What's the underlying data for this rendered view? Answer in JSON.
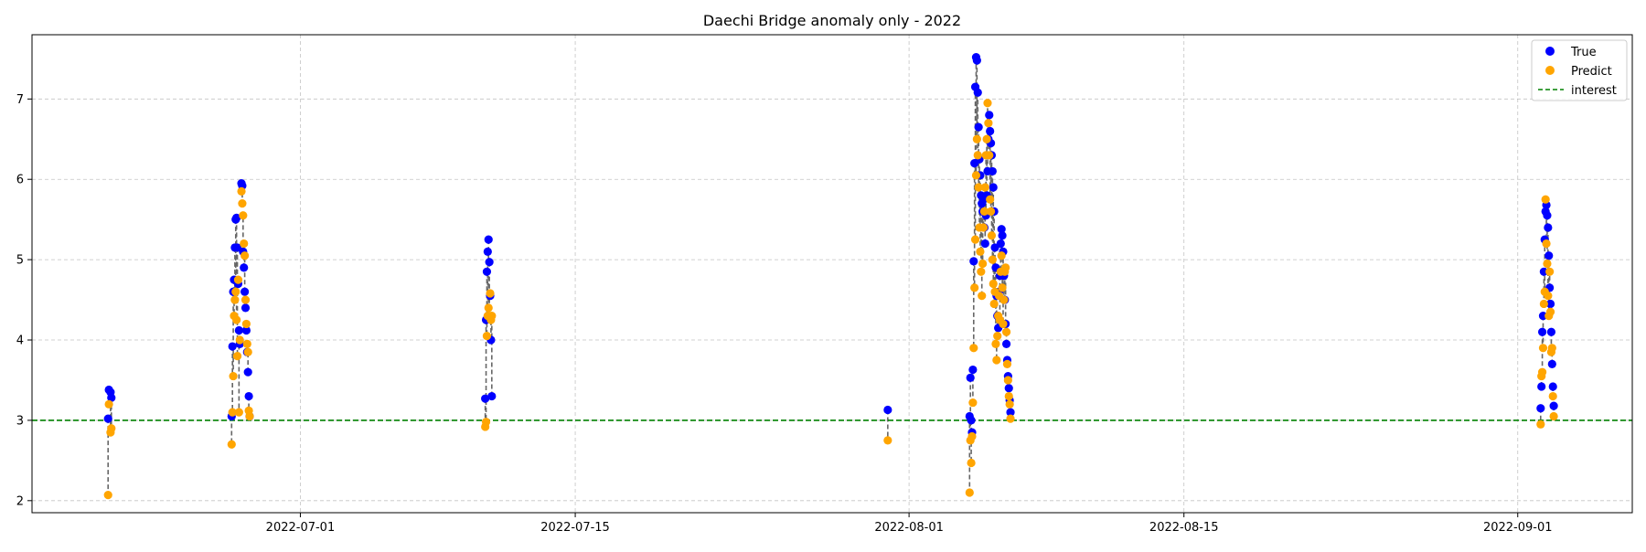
{
  "chart_data": {
    "type": "scatter",
    "title": "Daechi Bridge anomaly only - 2022",
    "xlabel": "",
    "ylabel": "",
    "x_axis_type": "date",
    "xlim": [
      "2022-06-17T08:00",
      "2022-09-06T20:00"
    ],
    "ylim": [
      1.85,
      7.8
    ],
    "x_ticks": [
      "2022-07-01",
      "2022-07-15",
      "2022-08-01",
      "2022-08-15",
      "2022-09-01"
    ],
    "y_ticks": [
      2,
      3,
      4,
      5,
      6,
      7
    ],
    "grid": true,
    "legend_position": "top-right",
    "colors": {
      "true": "#0000ff",
      "predict": "#ffa500",
      "interest": "#008000",
      "connector": "#666666",
      "grid": "#b0b0b0"
    },
    "interest": {
      "name": "interest",
      "y": 3.0
    },
    "series": [
      {
        "name": "True",
        "points": [
          [
            "2022-06-21T06:00",
            3.38
          ],
          [
            "2022-06-21T08:00",
            3.35
          ],
          [
            "2022-06-21T09:00",
            3.28
          ],
          [
            "2022-06-21T05:00",
            3.02
          ],
          [
            "2022-06-27T12:00",
            3.05
          ],
          [
            "2022-06-27T13:00",
            3.92
          ],
          [
            "2022-06-27T14:00",
            4.6
          ],
          [
            "2022-06-27T15:00",
            4.75
          ],
          [
            "2022-06-27T16:00",
            5.15
          ],
          [
            "2022-06-27T17:00",
            5.5
          ],
          [
            "2022-06-27T18:00",
            5.52
          ],
          [
            "2022-06-27T19:00",
            5.15
          ],
          [
            "2022-06-27T20:00",
            4.7
          ],
          [
            "2022-06-27T21:00",
            4.12
          ],
          [
            "2022-06-27T22:00",
            3.95
          ],
          [
            "2022-06-28T00:00",
            5.95
          ],
          [
            "2022-06-28T01:00",
            5.92
          ],
          [
            "2022-06-28T02:00",
            5.1
          ],
          [
            "2022-06-28T03:00",
            4.9
          ],
          [
            "2022-06-28T04:00",
            4.6
          ],
          [
            "2022-06-28T05:00",
            4.4
          ],
          [
            "2022-06-28T06:00",
            4.12
          ],
          [
            "2022-06-28T07:00",
            3.85
          ],
          [
            "2022-06-28T08:00",
            3.6
          ],
          [
            "2022-06-28T09:00",
            3.3
          ],
          [
            "2022-06-28T10:00",
            3.05
          ],
          [
            "2022-07-10T10:00",
            3.27
          ],
          [
            "2022-07-10T11:00",
            4.25
          ],
          [
            "2022-07-10T12:00",
            4.85
          ],
          [
            "2022-07-10T13:00",
            5.1
          ],
          [
            "2022-07-10T14:00",
            5.25
          ],
          [
            "2022-07-10T15:00",
            4.97
          ],
          [
            "2022-07-10T16:00",
            4.55
          ],
          [
            "2022-07-10T17:00",
            4.0
          ],
          [
            "2022-07-10T18:00",
            3.3
          ],
          [
            "2022-07-30T22:00",
            3.13
          ],
          [
            "2022-08-04T02:00",
            3.05
          ],
          [
            "2022-08-04T03:00",
            3.53
          ],
          [
            "2022-08-04T04:00",
            3.0
          ],
          [
            "2022-08-04T05:00",
            2.85
          ],
          [
            "2022-08-04T06:00",
            3.63
          ],
          [
            "2022-08-04T07:00",
            4.98
          ],
          [
            "2022-08-04T08:00",
            6.2
          ],
          [
            "2022-08-04T09:00",
            7.15
          ],
          [
            "2022-08-04T10:00",
            7.52
          ],
          [
            "2022-08-04T11:00",
            7.48
          ],
          [
            "2022-08-04T12:00",
            7.08
          ],
          [
            "2022-08-04T13:00",
            6.65
          ],
          [
            "2022-08-04T14:00",
            6.25
          ],
          [
            "2022-08-04T15:00",
            6.05
          ],
          [
            "2022-08-04T16:00",
            5.8
          ],
          [
            "2022-08-04T17:00",
            5.7
          ],
          [
            "2022-08-04T18:00",
            5.6
          ],
          [
            "2022-08-04T19:00",
            5.75
          ],
          [
            "2022-08-04T20:00",
            5.4
          ],
          [
            "2022-08-04T21:00",
            5.2
          ],
          [
            "2022-08-04T22:00",
            5.55
          ],
          [
            "2022-08-04T23:00",
            5.8
          ],
          [
            "2022-08-05T00:00",
            6.1
          ],
          [
            "2022-08-05T01:00",
            6.5
          ],
          [
            "2022-08-05T02:00",
            6.8
          ],
          [
            "2022-08-05T03:00",
            6.6
          ],
          [
            "2022-08-05T04:00",
            6.45
          ],
          [
            "2022-08-05T05:00",
            6.3
          ],
          [
            "2022-08-05T06:00",
            6.1
          ],
          [
            "2022-08-05T07:00",
            5.9
          ],
          [
            "2022-08-05T08:00",
            5.6
          ],
          [
            "2022-08-05T09:00",
            5.15
          ],
          [
            "2022-08-05T10:00",
            4.9
          ],
          [
            "2022-08-05T11:00",
            4.55
          ],
          [
            "2022-08-05T12:00",
            4.3
          ],
          [
            "2022-08-05T13:00",
            4.15
          ],
          [
            "2022-08-05T14:00",
            4.6
          ],
          [
            "2022-08-05T15:00",
            4.8
          ],
          [
            "2022-08-05T16:00",
            5.2
          ],
          [
            "2022-08-05T17:00",
            5.38
          ],
          [
            "2022-08-05T18:00",
            5.3
          ],
          [
            "2022-08-05T19:00",
            5.1
          ],
          [
            "2022-08-05T20:00",
            4.8
          ],
          [
            "2022-08-05T21:00",
            4.5
          ],
          [
            "2022-08-05T22:00",
            4.2
          ],
          [
            "2022-08-05T23:00",
            3.95
          ],
          [
            "2022-08-06T00:00",
            3.75
          ],
          [
            "2022-08-06T01:00",
            3.55
          ],
          [
            "2022-08-06T02:00",
            3.4
          ],
          [
            "2022-08-06T03:00",
            3.25
          ],
          [
            "2022-08-06T04:00",
            3.1
          ],
          [
            "2022-09-02T04:00",
            3.15
          ],
          [
            "2022-09-02T05:00",
            3.42
          ],
          [
            "2022-09-02T06:00",
            4.1
          ],
          [
            "2022-09-02T07:00",
            4.3
          ],
          [
            "2022-09-02T08:00",
            4.85
          ],
          [
            "2022-09-02T09:00",
            5.25
          ],
          [
            "2022-09-02T10:00",
            5.6
          ],
          [
            "2022-09-02T11:00",
            5.68
          ],
          [
            "2022-09-02T12:00",
            5.55
          ],
          [
            "2022-09-02T13:00",
            5.4
          ],
          [
            "2022-09-02T14:00",
            5.05
          ],
          [
            "2022-09-02T15:00",
            4.65
          ],
          [
            "2022-09-02T16:00",
            4.45
          ],
          [
            "2022-09-02T17:00",
            4.1
          ],
          [
            "2022-09-02T18:00",
            3.7
          ],
          [
            "2022-09-02T19:00",
            3.42
          ],
          [
            "2022-09-02T20:00",
            3.18
          ]
        ]
      },
      {
        "name": "Predict",
        "points": [
          [
            "2022-06-21T06:00",
            3.2
          ],
          [
            "2022-06-21T08:00",
            2.85
          ],
          [
            "2022-06-21T09:00",
            2.9
          ],
          [
            "2022-06-21T05:00",
            2.07
          ],
          [
            "2022-06-27T12:00",
            2.7
          ],
          [
            "2022-06-27T13:00",
            3.1
          ],
          [
            "2022-06-27T14:00",
            3.55
          ],
          [
            "2022-06-27T15:00",
            4.3
          ],
          [
            "2022-06-27T16:00",
            4.5
          ],
          [
            "2022-06-27T17:00",
            4.6
          ],
          [
            "2022-06-27T18:00",
            4.25
          ],
          [
            "2022-06-27T19:00",
            3.8
          ],
          [
            "2022-06-27T20:00",
            4.75
          ],
          [
            "2022-06-27T21:00",
            3.1
          ],
          [
            "2022-06-27T22:00",
            4.0
          ],
          [
            "2022-06-28T00:00",
            5.85
          ],
          [
            "2022-06-28T01:00",
            5.7
          ],
          [
            "2022-06-28T02:00",
            5.55
          ],
          [
            "2022-06-28T03:00",
            5.2
          ],
          [
            "2022-06-28T04:00",
            5.05
          ],
          [
            "2022-06-28T05:00",
            4.5
          ],
          [
            "2022-06-28T06:00",
            4.2
          ],
          [
            "2022-06-28T07:00",
            3.95
          ],
          [
            "2022-06-28T08:00",
            3.85
          ],
          [
            "2022-06-28T09:00",
            3.12
          ],
          [
            "2022-06-28T10:00",
            3.05
          ],
          [
            "2022-07-10T10:00",
            2.92
          ],
          [
            "2022-07-10T11:00",
            2.98
          ],
          [
            "2022-07-10T12:00",
            4.05
          ],
          [
            "2022-07-10T13:00",
            4.3
          ],
          [
            "2022-07-10T14:00",
            4.4
          ],
          [
            "2022-07-10T15:00",
            4.3
          ],
          [
            "2022-07-10T16:00",
            4.58
          ],
          [
            "2022-07-10T17:00",
            4.25
          ],
          [
            "2022-07-10T18:00",
            4.3
          ],
          [
            "2022-07-30T22:00",
            2.75
          ],
          [
            "2022-08-04T02:00",
            2.1
          ],
          [
            "2022-08-04T03:00",
            2.75
          ],
          [
            "2022-08-04T04:00",
            2.47
          ],
          [
            "2022-08-04T05:00",
            2.8
          ],
          [
            "2022-08-04T06:00",
            3.22
          ],
          [
            "2022-08-04T07:00",
            3.9
          ],
          [
            "2022-08-04T08:00",
            4.65
          ],
          [
            "2022-08-04T09:00",
            5.25
          ],
          [
            "2022-08-04T10:00",
            6.05
          ],
          [
            "2022-08-04T11:00",
            6.5
          ],
          [
            "2022-08-04T12:00",
            6.3
          ],
          [
            "2022-08-04T13:00",
            5.9
          ],
          [
            "2022-08-04T14:00",
            5.4
          ],
          [
            "2022-08-04T15:00",
            5.1
          ],
          [
            "2022-08-04T16:00",
            4.85
          ],
          [
            "2022-08-04T17:00",
            4.55
          ],
          [
            "2022-08-04T18:00",
            4.95
          ],
          [
            "2022-08-04T19:00",
            5.4
          ],
          [
            "2022-08-04T20:00",
            5.6
          ],
          [
            "2022-08-04T21:00",
            5.9
          ],
          [
            "2022-08-04T22:00",
            6.3
          ],
          [
            "2022-08-04T23:00",
            6.5
          ],
          [
            "2022-08-05T00:00",
            6.95
          ],
          [
            "2022-08-05T01:00",
            6.7
          ],
          [
            "2022-08-05T02:00",
            6.3
          ],
          [
            "2022-08-05T03:00",
            5.75
          ],
          [
            "2022-08-05T04:00",
            5.6
          ],
          [
            "2022-08-05T05:00",
            5.3
          ],
          [
            "2022-08-05T06:00",
            5.0
          ],
          [
            "2022-08-05T07:00",
            4.7
          ],
          [
            "2022-08-05T08:00",
            4.45
          ],
          [
            "2022-08-05T09:00",
            4.6
          ],
          [
            "2022-08-05T10:00",
            3.95
          ],
          [
            "2022-08-05T11:00",
            3.75
          ],
          [
            "2022-08-05T12:00",
            4.05
          ],
          [
            "2022-08-05T13:00",
            4.3
          ],
          [
            "2022-08-05T14:00",
            4.55
          ],
          [
            "2022-08-05T15:00",
            4.25
          ],
          [
            "2022-08-05T16:00",
            4.85
          ],
          [
            "2022-08-05T17:00",
            5.05
          ],
          [
            "2022-08-05T18:00",
            4.65
          ],
          [
            "2022-08-05T19:00",
            4.2
          ],
          [
            "2022-08-05T20:00",
            4.5
          ],
          [
            "2022-08-05T21:00",
            4.85
          ],
          [
            "2022-08-05T22:00",
            4.9
          ],
          [
            "2022-08-05T23:00",
            4.1
          ],
          [
            "2022-08-06T00:00",
            3.7
          ],
          [
            "2022-08-06T01:00",
            3.5
          ],
          [
            "2022-08-06T02:00",
            3.3
          ],
          [
            "2022-08-06T03:00",
            3.2
          ],
          [
            "2022-08-06T04:00",
            3.02
          ],
          [
            "2022-09-02T04:00",
            2.95
          ],
          [
            "2022-09-02T05:00",
            3.55
          ],
          [
            "2022-09-02T06:00",
            3.6
          ],
          [
            "2022-09-02T07:00",
            3.9
          ],
          [
            "2022-09-02T08:00",
            4.45
          ],
          [
            "2022-09-02T09:00",
            4.6
          ],
          [
            "2022-09-02T10:00",
            5.75
          ],
          [
            "2022-09-02T11:00",
            5.2
          ],
          [
            "2022-09-02T12:00",
            4.95
          ],
          [
            "2022-09-02T13:00",
            4.55
          ],
          [
            "2022-09-02T14:00",
            4.3
          ],
          [
            "2022-09-02T15:00",
            4.85
          ],
          [
            "2022-09-02T16:00",
            4.35
          ],
          [
            "2022-09-02T17:00",
            3.85
          ],
          [
            "2022-09-02T18:00",
            3.9
          ],
          [
            "2022-09-02T19:00",
            3.3
          ],
          [
            "2022-09-02T20:00",
            3.05
          ]
        ]
      }
    ]
  }
}
